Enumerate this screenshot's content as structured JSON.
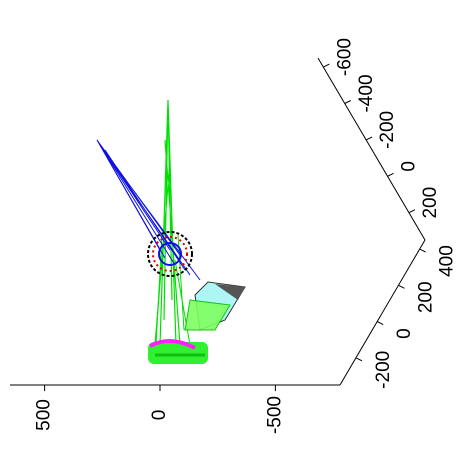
{
  "chart_data": {
    "type": "3d",
    "xlim": [
      650,
      -780
    ],
    "xticks": [
      500,
      0,
      -500
    ],
    "ylim": [
      -350,
      450
    ],
    "yticks": [
      -200,
      0,
      200,
      400
    ],
    "zlim": [
      350,
      -650
    ],
    "zticks": [
      200,
      0,
      -200,
      -400,
      -600
    ]
  }
}
